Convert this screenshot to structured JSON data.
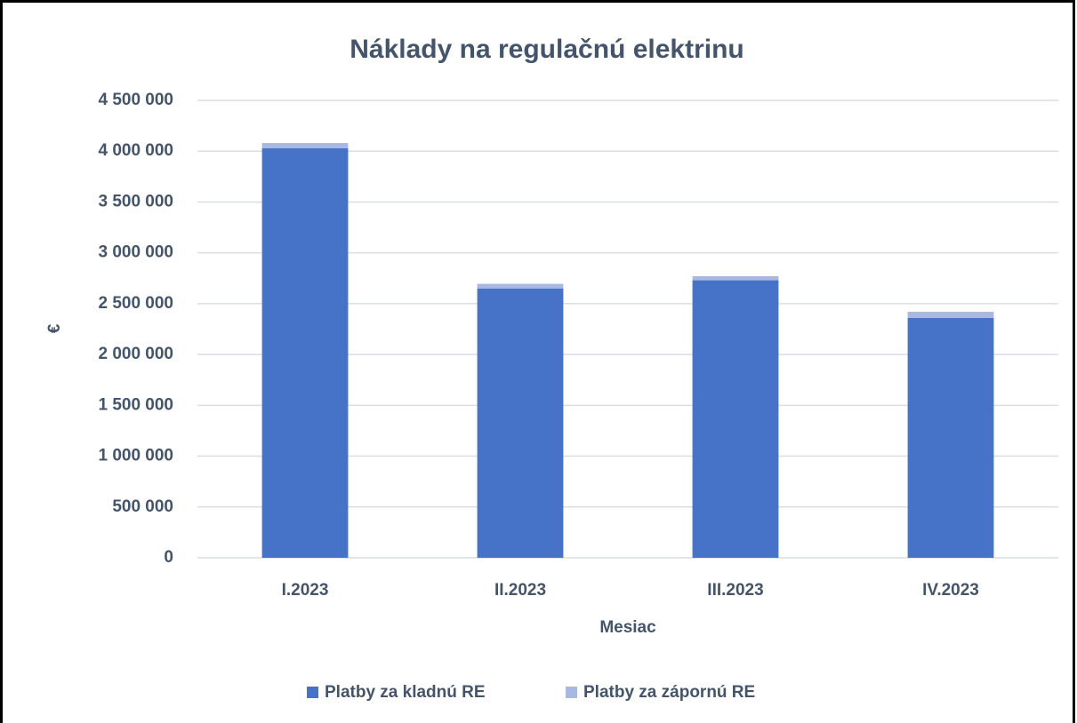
{
  "chart_data": {
    "type": "stacked_bar",
    "title": "Náklady na regulačnú elektrinu",
    "x_label": "Mesiac",
    "y_label": "€",
    "categories": [
      "I.2023",
      "II.2023",
      "III.2023",
      "IV.2023"
    ],
    "series": [
      {
        "name": "Platby za kladnú RE",
        "color": "#4672c8",
        "values": [
          4030000,
          2650000,
          2730000,
          2360000
        ]
      },
      {
        "name": "Platby za zápornú RE",
        "color": "#a9b8e0",
        "values": [
          50000,
          45000,
          40000,
          60000
        ]
      }
    ],
    "ylim": [
      0,
      4500000
    ],
    "yticks": [
      0,
      {
        "value": 500000,
        "label": "500 000"
      },
      {
        "value": 1000000,
        "label": "1 000 000"
      },
      {
        "value": 1500000,
        "label": "1 500 000"
      },
      {
        "value": 2000000,
        "label": "2 000 000"
      },
      {
        "value": 2500000,
        "label": "2 500 000"
      },
      {
        "value": 3000000,
        "label": "3 000 000"
      },
      {
        "value": 3500000,
        "label": "3 500 000"
      },
      {
        "value": 4000000,
        "label": "4 000 000"
      },
      {
        "value": 4500000,
        "label": "4 500 000"
      }
    ],
    "grid": true,
    "legend": "bottom"
  }
}
